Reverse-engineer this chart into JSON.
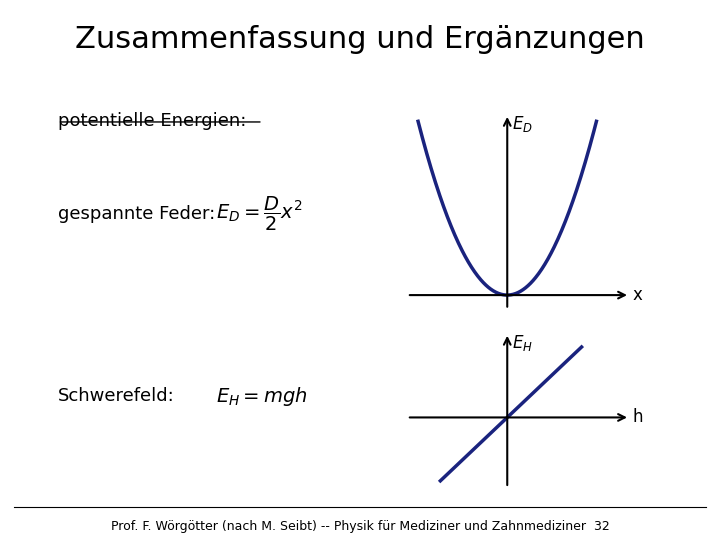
{
  "title": "Zusammenfassung und Ergänzungen",
  "slide_bg": "#ffffff",
  "header_bg": "#cccccc",
  "title_color": "#000000",
  "title_fontsize": 22,
  "underline_text": "potentielle Energien:",
  "label1": "gespannte Feder:",
  "formula1": "$E_D = \\dfrac{D}{2}x^2$",
  "label2": "Schwerefeld:",
  "formula2": "$E_H = mgh$",
  "curve_color": "#1a237e",
  "axis_color": "#000000",
  "footer": "Prof. F. Wörgötter (nach M. Seibt) -- Physik für Mediziner und Zahnmediziner  32",
  "footer_fontsize": 9,
  "text_color": "#000000"
}
